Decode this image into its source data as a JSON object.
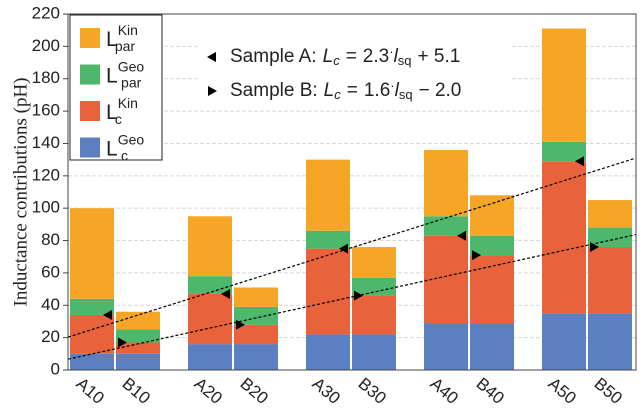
{
  "chart_data": {
    "type": "bar",
    "stacked": true,
    "ylabel": "Inductance contributions (pH)",
    "categories": [
      "A10",
      "B10",
      "A20",
      "B20",
      "A30",
      "B30",
      "A40",
      "B40",
      "A50",
      "B50"
    ],
    "series": [
      {
        "name": {
          "base": "L",
          "sup": "Geo",
          "sub": "c"
        },
        "color": "#5b7fc0",
        "values": [
          10,
          10,
          16,
          16,
          22,
          22,
          29,
          29,
          35,
          35
        ]
      },
      {
        "name": {
          "base": "L",
          "sup": "Kin",
          "sub": "c"
        },
        "color": "#e8633b",
        "values": [
          24,
          7,
          31,
          12,
          53,
          24,
          54,
          42,
          94,
          41
        ]
      },
      {
        "name": {
          "base": "L",
          "sup": "Geo",
          "sub": "par"
        },
        "color": "#4db86b",
        "values": [
          10,
          8,
          11,
          11,
          11,
          11,
          12,
          12,
          12,
          12
        ]
      },
      {
        "name": {
          "base": "L",
          "sup": "Kin",
          "sub": "par"
        },
        "color": "#f5a626",
        "values": [
          56,
          11,
          37,
          12,
          44,
          19,
          41,
          25,
          70,
          17
        ]
      }
    ],
    "fits": [
      {
        "label": "Sample A:",
        "lhs": "L",
        "lhs_sub": "c",
        "op": "=",
        "slope": 2.3,
        "times": "·",
        "var": "l",
        "var_sub": "sq",
        "intercept": 5.1,
        "intercept_label": "+ 5.1",
        "x_values": [
          10,
          20,
          30,
          40,
          50
        ]
      },
      {
        "label": "Sample B:",
        "lhs": "L",
        "lhs_sub": "c",
        "op": "=",
        "slope": 1.6,
        "times": "·",
        "var": "l",
        "var_sub": "sq",
        "intercept": -2.0,
        "intercept_label": "− 2.0",
        "x_values": [
          10,
          20,
          30,
          40,
          50
        ]
      }
    ],
    "ylim": [
      0,
      220
    ],
    "yticks": [
      0,
      20,
      40,
      60,
      80,
      100,
      120,
      140,
      160,
      180,
      200,
      220
    ],
    "grid": true
  }
}
